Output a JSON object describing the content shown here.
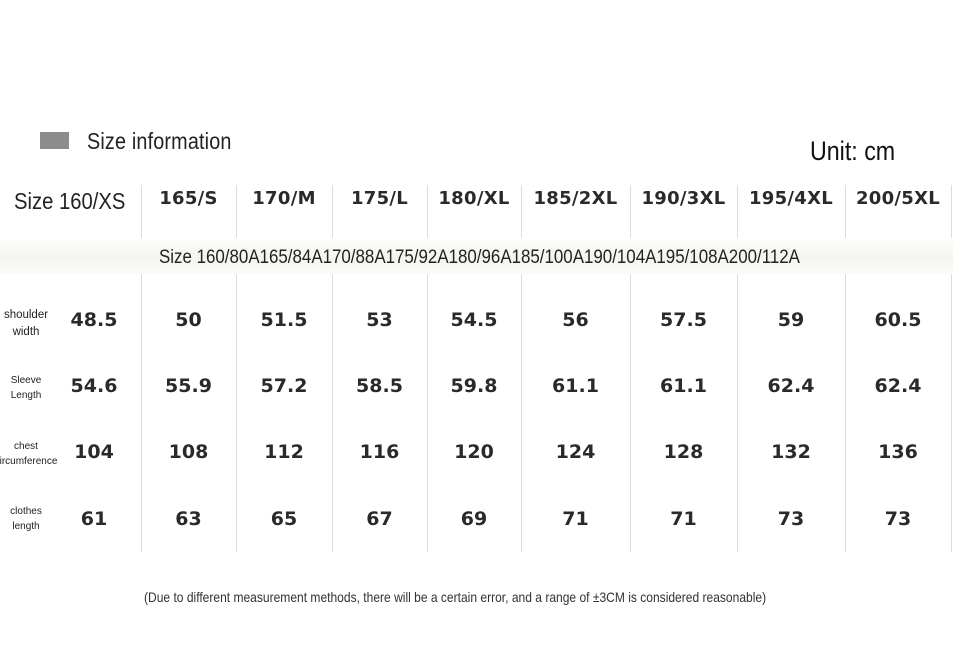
{
  "header": {
    "title": "Size information",
    "unit": "Unit: cm"
  },
  "table": {
    "first_size": "Size 160/XS",
    "columns": [
      "165/S",
      "170/M",
      "175/L",
      "180/XL",
      "185/2XL",
      "190/3XL",
      "195/4XL",
      "200/5XL"
    ],
    "size_codes": "Size 160/80A165/84A170/88A175/92A180/96A185/100A190/104A195/108A200/112A",
    "rows": [
      {
        "label_lines": [
          "shoulder",
          "width"
        ],
        "values": [
          "48.5",
          "50",
          "51.5",
          "53",
          "54.5",
          "56",
          "57.5",
          "59",
          "60.5"
        ]
      },
      {
        "label_lines": [
          "Sleeve",
          "Length"
        ],
        "values": [
          "54.6",
          "55.9",
          "57.2",
          "58.5",
          "59.8",
          "61.1",
          "61.1",
          "62.4",
          "62.4"
        ]
      },
      {
        "label_lines": [
          "chest",
          "circumference"
        ],
        "values": [
          "104",
          "108",
          "112",
          "116",
          "120",
          "124",
          "128",
          "132",
          "136"
        ]
      },
      {
        "label_lines": [
          "clothes",
          "length"
        ],
        "values": [
          "61",
          "63",
          "65",
          "67",
          "69",
          "71",
          "71",
          "73",
          "73"
        ]
      }
    ]
  },
  "footnote": "(Due to different measurement methods, there will be a certain error, and a range of ±3CM is considered reasonable)",
  "colors": {
    "swatch": "#8c8c8c",
    "grid_line": "#dcdcdc",
    "text": "#2a2a2a"
  }
}
